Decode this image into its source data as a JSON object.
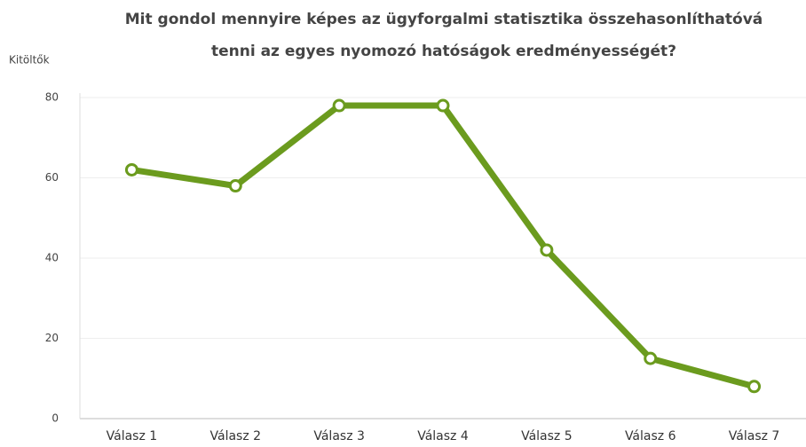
{
  "chart_data": {
    "type": "line",
    "title": [
      "Mit gondol mennyire képes az ügyforgalmi statisztika összehasonlíthatóvá",
      "tenni az egyes nyomozó hatóságok eredményességét?"
    ],
    "y_label": "Kitöltők",
    "categories": [
      "Válasz 1",
      "Válasz 2",
      "Válasz 3",
      "Válasz 4",
      "Válasz 5",
      "Válasz 6",
      "Válasz 7"
    ],
    "values": [
      62,
      58,
      78,
      78,
      42,
      15,
      8
    ],
    "color": "#6b9b1e",
    "ylim": [
      0,
      80
    ],
    "yticks": [
      0,
      20,
      40,
      60,
      80
    ],
    "grid": true
  }
}
